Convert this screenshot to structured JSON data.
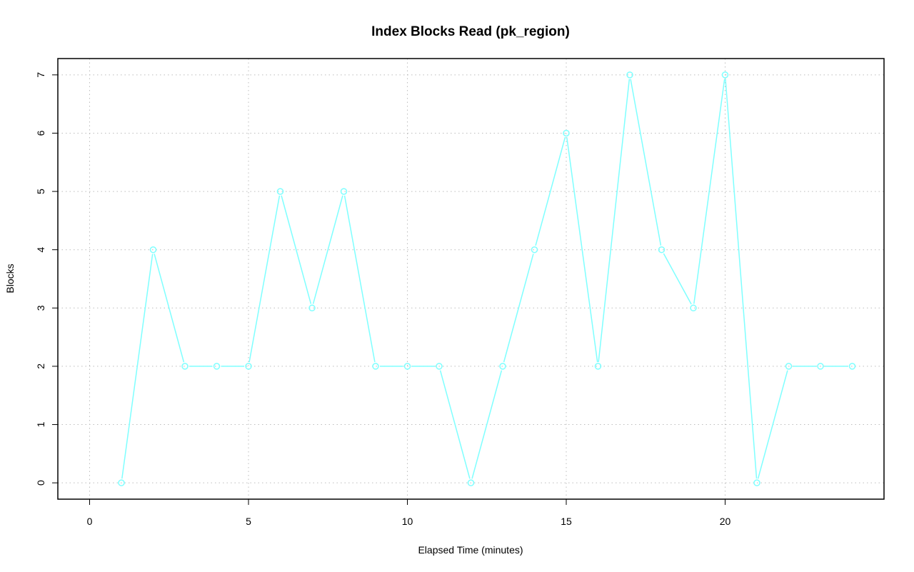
{
  "chart_data": {
    "type": "line",
    "title": "Index Blocks Read (pk_region)",
    "xlabel": "Elapsed Time (minutes)",
    "ylabel": "Blocks",
    "xlim": [
      -1,
      25
    ],
    "ylim": [
      -0.28,
      7.28
    ],
    "x_ticks": [
      0,
      5,
      10,
      15,
      20
    ],
    "y_ticks": [
      0,
      1,
      2,
      3,
      4,
      5,
      6,
      7
    ],
    "grid": true,
    "series": [
      {
        "color": "#7fffff",
        "marker": "open-circle",
        "x": [
          1,
          2,
          3,
          4,
          5,
          6,
          7,
          8,
          9,
          10,
          11,
          12,
          13,
          14,
          15,
          16,
          17,
          18,
          19,
          20,
          21,
          22,
          23,
          24
        ],
        "y": [
          0,
          4,
          2,
          2,
          2,
          5,
          3,
          5,
          2,
          2,
          2,
          0,
          2,
          4,
          6,
          2,
          7,
          4,
          3,
          7,
          0,
          2,
          2,
          2
        ]
      }
    ]
  }
}
